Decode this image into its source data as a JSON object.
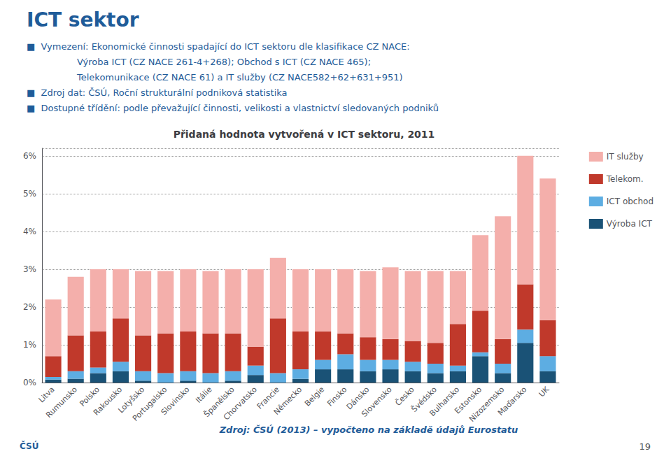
{
  "chart_data": {
    "type": "bar",
    "stacked": true,
    "title": "Přidaná hodnota vytvořená v ICT sektoru, 2011",
    "annotations": [
      "ICT sektor",
      "■  Vymezení: Ekonomické činnosti spadající do ICT sektoru dle klasifikace CZ NACE:",
      "Výroba ICT (CZ NACE 261-4+268); Obchod s ICT (CZ NACE 465);",
      "Telekomunikace (CZ NACE 61) a IT služby (CZ NACE582+62+631+951)",
      "■  Zdroj dat: ČSÚ, Roční strukturální podniková statistika",
      "■  Dostupné třídění: podle převažující činnosti, velikosti a vlastnictví sledovaných podniků",
      "Zdroj: ČSÚ (2013) – vypočteno na základě údajů Eurostatu",
      "ČSÚ",
      "19"
    ],
    "categories": [
      "Litva",
      "Rumunsko",
      "Polsko",
      "Rakousko",
      "Lotyšsko",
      "Portugalsko",
      "Slovinsko",
      "Itálie",
      "Španělsko",
      "Chorvatsko",
      "Francie",
      "Německo",
      "Belgie",
      "Finsko",
      "Dánsko",
      "Slovensko",
      "Česko",
      "Švédsko",
      "Bulharsko",
      "Estonsko",
      "Nizozemsko",
      "Maďarsko",
      "UK"
    ],
    "series": [
      {
        "name": "Výroba ICT",
        "color": "#1A5276",
        "values": [
          0.08,
          0.1,
          0.25,
          0.3,
          0.05,
          0.0,
          0.05,
          0.0,
          0.05,
          0.2,
          0.0,
          0.1,
          0.35,
          0.35,
          0.3,
          0.35,
          0.3,
          0.25,
          0.3,
          0.7,
          0.25,
          1.05,
          0.3
        ]
      },
      {
        "name": "ICT obchod",
        "color": "#5DADE2",
        "values": [
          0.07,
          0.2,
          0.15,
          0.25,
          0.25,
          0.25,
          0.25,
          0.25,
          0.25,
          0.25,
          0.25,
          0.25,
          0.25,
          0.4,
          0.3,
          0.25,
          0.25,
          0.25,
          0.15,
          0.1,
          0.25,
          0.35,
          0.4
        ]
      },
      {
        "name": "Telekom.",
        "color": "#C0392B",
        "values": [
          0.55,
          0.95,
          0.95,
          1.15,
          0.95,
          1.05,
          1.05,
          1.05,
          1.0,
          0.5,
          1.45,
          1.0,
          0.75,
          0.55,
          0.6,
          0.55,
          0.55,
          0.55,
          1.1,
          1.1,
          0.65,
          1.2,
          0.95
        ]
      },
      {
        "name": "IT služby",
        "color": "#F4AFAB",
        "values": [
          1.5,
          1.55,
          1.65,
          1.3,
          1.7,
          1.65,
          1.65,
          1.65,
          1.7,
          2.05,
          1.6,
          1.65,
          1.65,
          1.7,
          1.75,
          1.9,
          1.85,
          1.9,
          1.4,
          2.0,
          3.25,
          3.4,
          3.75
        ]
      }
    ],
    "ylim": [
      0,
      6.2
    ],
    "yticks": [
      {
        "value": 0,
        "label": "0%"
      },
      {
        "value": 1,
        "label": "1%"
      },
      {
        "value": 2,
        "label": "2%"
      },
      {
        "value": 3,
        "label": "3%"
      },
      {
        "value": 4,
        "label": "4%"
      },
      {
        "value": 5,
        "label": "5%"
      },
      {
        "value": 6,
        "label": "6%"
      }
    ],
    "grid": true,
    "legend": "right"
  }
}
